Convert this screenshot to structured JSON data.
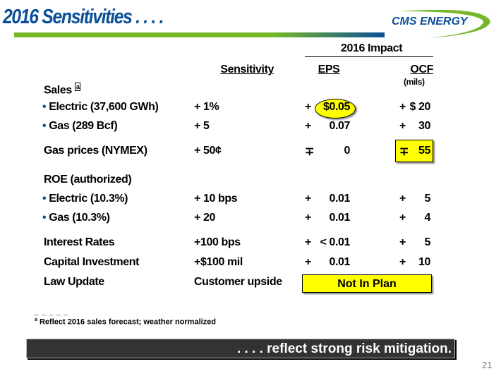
{
  "header": {
    "title": "2016 Sensitivities . . . .",
    "logo_text": "CMS ENERGY"
  },
  "table": {
    "group_header": "2016 Impact",
    "columns": {
      "sensitivity": "Sensitivity",
      "eps": "EPS",
      "ocf": "OCF",
      "ocf_unit": "(mils)"
    },
    "rows": [
      {
        "label": "Sales",
        "footnote_ref": "a",
        "bullet": false
      },
      {
        "label": "Electric (37,600 GWh)",
        "bullet": true,
        "sensitivity": "+  1%",
        "eps_sign": "+",
        "eps": "$0.05",
        "ocf_sign": "+",
        "ocf": "$ 20"
      },
      {
        "label": "Gas (289 Bcf)",
        "bullet": true,
        "sensitivity": "+  5",
        "eps_sign": "+",
        "eps": "0.07",
        "ocf_sign": "+",
        "ocf": "30"
      },
      {
        "label": "Gas prices (NYMEX)",
        "bullet": false,
        "sensitivity": "+ 50¢",
        "eps_sign": "∓",
        "eps": "0",
        "ocf_sign": "∓",
        "ocf": "55"
      },
      {
        "label": "ROE (authorized)",
        "bullet": false
      },
      {
        "label": "Electric (10.3%)",
        "bullet": true,
        "sensitivity": "+ 10 bps",
        "eps_sign": "+",
        "eps": "0.01",
        "ocf_sign": "+",
        "ocf": "5"
      },
      {
        "label": "Gas (10.3%)",
        "bullet": true,
        "sensitivity": "+ 20",
        "eps_sign": "+",
        "eps": "0.01",
        "ocf_sign": "+",
        "ocf": "4"
      },
      {
        "label": "Interest Rates",
        "bullet": false,
        "sensitivity": "+100 bps",
        "eps_sign": "+",
        "eps": "< 0.01",
        "ocf_sign": "+",
        "ocf": "5"
      },
      {
        "label": "Capital Investment",
        "bullet": false,
        "sensitivity": "+$100 mil",
        "eps_sign": "+",
        "eps": "0.01",
        "ocf_sign": "+",
        "ocf": "10"
      },
      {
        "label": "Law Update",
        "bullet": false,
        "sensitivity": "Customer upside",
        "impact": "Not In Plan"
      }
    ]
  },
  "footer": {
    "dashes": "_ _ _ _ _",
    "footnote_mark": "a",
    "footnote": "Reflect 2016 sales forecast; weather normalized",
    "banner": ". . . . reflect strong risk mitigation.",
    "page_number": "21"
  },
  "colors": {
    "brand_blue": "#0b4f98",
    "brand_green": "#76b82a",
    "highlight": "#ffff00"
  }
}
